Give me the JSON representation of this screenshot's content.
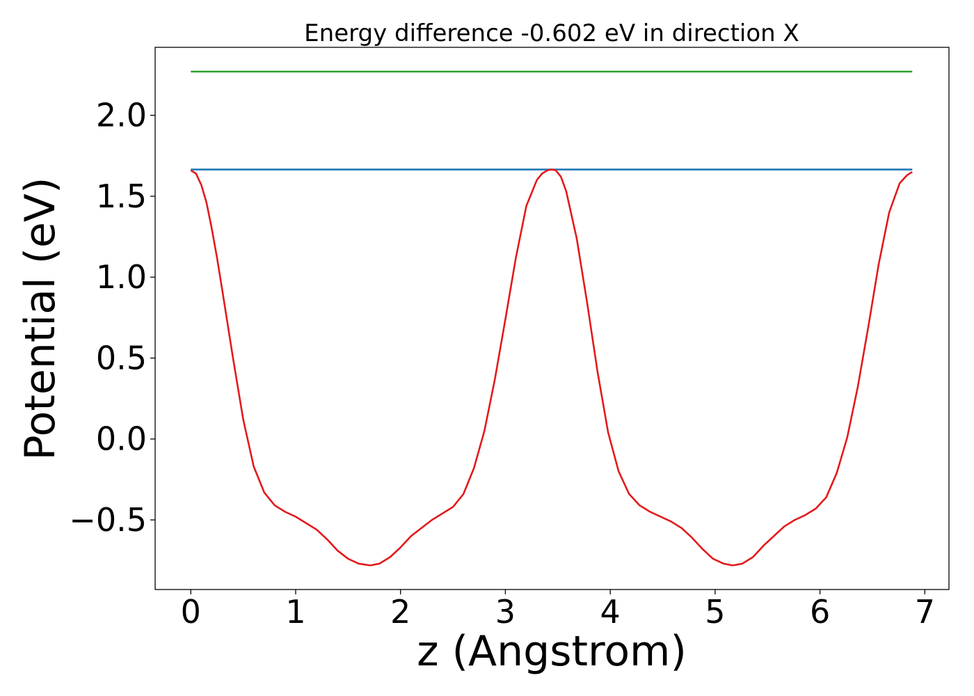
{
  "chart_data": {
    "type": "line",
    "title": "Energy difference -0.602 eV in direction X",
    "xlabel": "z (Angstrom)",
    "ylabel": "Potential (eV)",
    "xlim": [
      -0.34,
      7.23
    ],
    "ylim": [
      -0.93,
      2.42
    ],
    "x_ticks": [
      0,
      1,
      2,
      3,
      4,
      5,
      6,
      7
    ],
    "x_tick_labels": [
      "0",
      "1",
      "2",
      "3",
      "4",
      "5",
      "6",
      "7"
    ],
    "y_ticks": [
      -0.5,
      0.0,
      0.5,
      1.0,
      1.5,
      2.0
    ],
    "y_tick_labels": [
      "−0.5",
      "0.0",
      "0.5",
      "1.0",
      "1.5",
      "2.0"
    ],
    "grid": false,
    "series": [
      {
        "color": "#2ca02c",
        "x": [
          0,
          6.88
        ],
        "y": [
          2.27,
          2.27
        ]
      },
      {
        "color": "#1f77b4",
        "x": [
          0,
          6.88
        ],
        "y": [
          1.665,
          1.665
        ]
      },
      {
        "color": "#e31a1c",
        "x": [
          0.0,
          0.05,
          0.1,
          0.15,
          0.2,
          0.25,
          0.3,
          0.4,
          0.5,
          0.6,
          0.7,
          0.8,
          0.9,
          1.0,
          1.1,
          1.2,
          1.3,
          1.4,
          1.5,
          1.6,
          1.7,
          1.72,
          1.8,
          1.9,
          2.0,
          2.1,
          2.2,
          2.3,
          2.4,
          2.5,
          2.6,
          2.7,
          2.8,
          2.9,
          3.0,
          3.1,
          3.2,
          3.3,
          3.35,
          3.4,
          3.44,
          3.48,
          3.53,
          3.58,
          3.68,
          3.78,
          3.88,
          3.98,
          4.08,
          4.18,
          4.28,
          4.38,
          4.48,
          4.58,
          4.68,
          4.78,
          4.88,
          4.98,
          5.08,
          5.16,
          5.18,
          5.26,
          5.36,
          5.46,
          5.56,
          5.66,
          5.76,
          5.86,
          5.96,
          6.06,
          6.16,
          6.26,
          6.36,
          6.46,
          6.56,
          6.66,
          6.76,
          6.83,
          6.88
        ],
        "y": [
          1.66,
          1.64,
          1.57,
          1.46,
          1.3,
          1.12,
          0.92,
          0.51,
          0.12,
          -0.17,
          -0.33,
          -0.41,
          -0.45,
          -0.48,
          -0.52,
          -0.56,
          -0.62,
          -0.69,
          -0.74,
          -0.77,
          -0.78,
          -0.78,
          -0.77,
          -0.73,
          -0.67,
          -0.6,
          -0.55,
          -0.5,
          -0.46,
          -0.42,
          -0.34,
          -0.18,
          0.05,
          0.37,
          0.74,
          1.12,
          1.44,
          1.6,
          1.64,
          1.66,
          1.665,
          1.66,
          1.62,
          1.53,
          1.24,
          0.84,
          0.41,
          0.04,
          -0.2,
          -0.34,
          -0.41,
          -0.45,
          -0.48,
          -0.51,
          -0.55,
          -0.61,
          -0.68,
          -0.74,
          -0.77,
          -0.78,
          -0.78,
          -0.77,
          -0.73,
          -0.66,
          -0.6,
          -0.54,
          -0.5,
          -0.47,
          -0.43,
          -0.36,
          -0.21,
          0.01,
          0.32,
          0.69,
          1.08,
          1.4,
          1.58,
          1.63,
          1.65
        ]
      }
    ]
  }
}
